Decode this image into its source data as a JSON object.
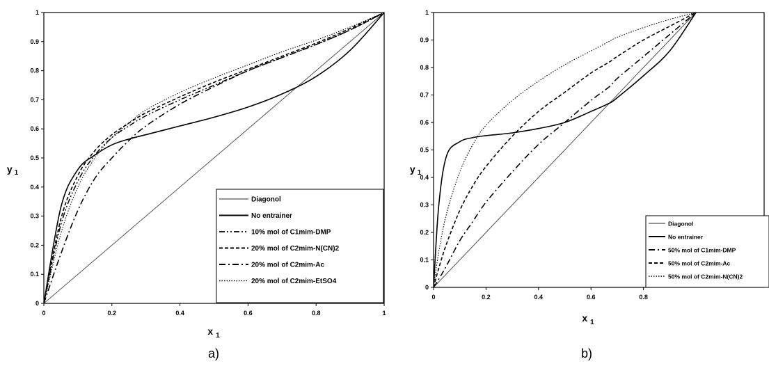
{
  "chart_data": [
    {
      "type": "line",
      "panel_label": "a)",
      "xlabel": "x",
      "xlabel_sub": "1",
      "ylabel": "y",
      "ylabel_sub": "1",
      "xlim": [
        0,
        1
      ],
      "ylim": [
        0,
        1
      ],
      "xticks": [
        "0",
        "0.2",
        "0.4",
        "0.6",
        "0.8",
        "1"
      ],
      "yticks": [
        "0",
        "0.1",
        "0.2",
        "0.3",
        "0.4",
        "0.5",
        "0.6",
        "0.7",
        "0.8",
        "0.9",
        "1"
      ],
      "grid": false,
      "legend_position": "bottom-right",
      "x": [
        0,
        0.05,
        0.1,
        0.15,
        0.2,
        0.25,
        0.3,
        0.4,
        0.5,
        0.6,
        0.7,
        0.8,
        0.9,
        1.0
      ],
      "series": [
        {
          "name": "Diagonol",
          "style": "solid-thin",
          "values": [
            0,
            0.05,
            0.1,
            0.15,
            0.2,
            0.25,
            0.3,
            0.4,
            0.5,
            0.6,
            0.7,
            0.8,
            0.9,
            1.0
          ]
        },
        {
          "name": "No entrainer",
          "style": "solid",
          "values": [
            0,
            0.33,
            0.46,
            0.51,
            0.545,
            0.565,
            0.58,
            0.61,
            0.64,
            0.675,
            0.72,
            0.78,
            0.87,
            1.0
          ]
        },
        {
          "name": "10% mol of C1mim-DMP",
          "style": "dashdotdot",
          "values": [
            0,
            0.27,
            0.42,
            0.51,
            0.57,
            0.61,
            0.645,
            0.7,
            0.75,
            0.8,
            0.845,
            0.89,
            0.94,
            1.0
          ]
        },
        {
          "name": "20% mol of C2mim-N(CN)2",
          "style": "dash",
          "values": [
            0,
            0.29,
            0.44,
            0.525,
            0.58,
            0.62,
            0.655,
            0.71,
            0.76,
            0.805,
            0.85,
            0.895,
            0.945,
            1.0
          ]
        },
        {
          "name": "20% mol of C2mim-Ac",
          "style": "dashdot",
          "values": [
            0,
            0.17,
            0.32,
            0.43,
            0.5,
            0.56,
            0.61,
            0.685,
            0.745,
            0.8,
            0.845,
            0.89,
            0.94,
            1.0
          ]
        },
        {
          "name": "20% mol of C2mim-EtSO4",
          "style": "dotted",
          "values": [
            0,
            0.24,
            0.4,
            0.5,
            0.57,
            0.62,
            0.665,
            0.725,
            0.775,
            0.82,
            0.865,
            0.905,
            0.95,
            1.0
          ]
        }
      ]
    },
    {
      "type": "line",
      "panel_label": "b)",
      "xlabel": "x",
      "xlabel_sub": "1",
      "ylabel": "y",
      "ylabel_sub": "1",
      "xlim": [
        0,
        1
      ],
      "ylim": [
        0,
        1
      ],
      "xticks": [
        "0",
        "0.2",
        "0.4",
        "0.6",
        "0.8"
      ],
      "yticks": [
        "0",
        "0.1",
        "0.2",
        "0.3",
        "0.4",
        "0.5",
        "0.6",
        "0.7",
        "0.8",
        "0.9",
        "1"
      ],
      "grid": false,
      "legend_position": "bottom-right",
      "x": [
        0,
        0.02,
        0.05,
        0.1,
        0.15,
        0.2,
        0.3,
        0.4,
        0.5,
        0.6,
        0.67,
        0.7,
        0.8,
        0.9,
        1.0
      ],
      "series": [
        {
          "name": "Diagonol",
          "style": "solid-thin",
          "values": [
            0,
            0.02,
            0.05,
            0.1,
            0.15,
            0.2,
            0.3,
            0.4,
            0.5,
            0.6,
            0.67,
            0.7,
            0.8,
            0.9,
            1.0
          ]
        },
        {
          "name": "No entrainer",
          "style": "solid",
          "values": [
            0,
            0.3,
            0.48,
            0.53,
            0.545,
            0.552,
            0.562,
            0.578,
            0.6,
            0.64,
            0.67,
            0.69,
            0.77,
            0.86,
            1.0
          ]
        },
        {
          "name": "50% mol of C1mim-DMP",
          "style": "dashdot",
          "values": [
            0,
            0.03,
            0.08,
            0.17,
            0.24,
            0.31,
            0.42,
            0.52,
            0.6,
            0.68,
            0.73,
            0.76,
            0.84,
            0.92,
            1.0
          ]
        },
        {
          "name": "50% mol of C2mim-Ac",
          "style": "dash",
          "values": [
            0,
            0.07,
            0.16,
            0.28,
            0.37,
            0.44,
            0.55,
            0.64,
            0.71,
            0.78,
            0.82,
            0.84,
            0.9,
            0.95,
            1.0
          ]
        },
        {
          "name": "50% mol of C2mim-N(CN)2",
          "style": "dotted",
          "values": [
            0,
            0.13,
            0.27,
            0.42,
            0.52,
            0.59,
            0.68,
            0.75,
            0.81,
            0.86,
            0.895,
            0.91,
            0.945,
            0.975,
            1.0
          ]
        }
      ]
    }
  ]
}
